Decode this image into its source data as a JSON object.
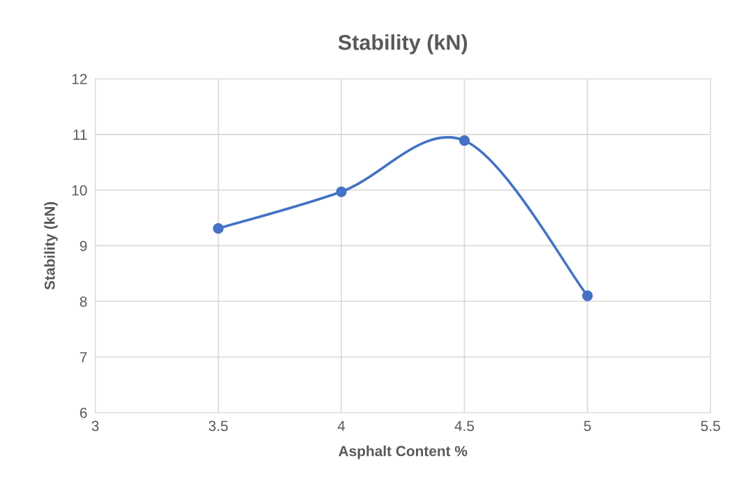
{
  "chart_data": {
    "type": "line",
    "title": "Stability (kN)",
    "xlabel": "Asphalt Content %",
    "ylabel": "Stability (kN)",
    "x": [
      3.5,
      4,
      4.5,
      5
    ],
    "series": [
      {
        "color": "#4472c4",
        "values": [
          9.31,
          9.97,
          10.89,
          8.1
        ]
      }
    ],
    "xlim": [
      3,
      5.5
    ],
    "xticks": [
      3,
      3.5,
      4,
      4.5,
      5,
      5.5
    ],
    "ylim": [
      6,
      12
    ],
    "yticks": [
      6,
      7,
      8,
      9,
      10,
      11,
      12
    ],
    "grid": true,
    "marker": "circle",
    "line_style": "solid"
  }
}
